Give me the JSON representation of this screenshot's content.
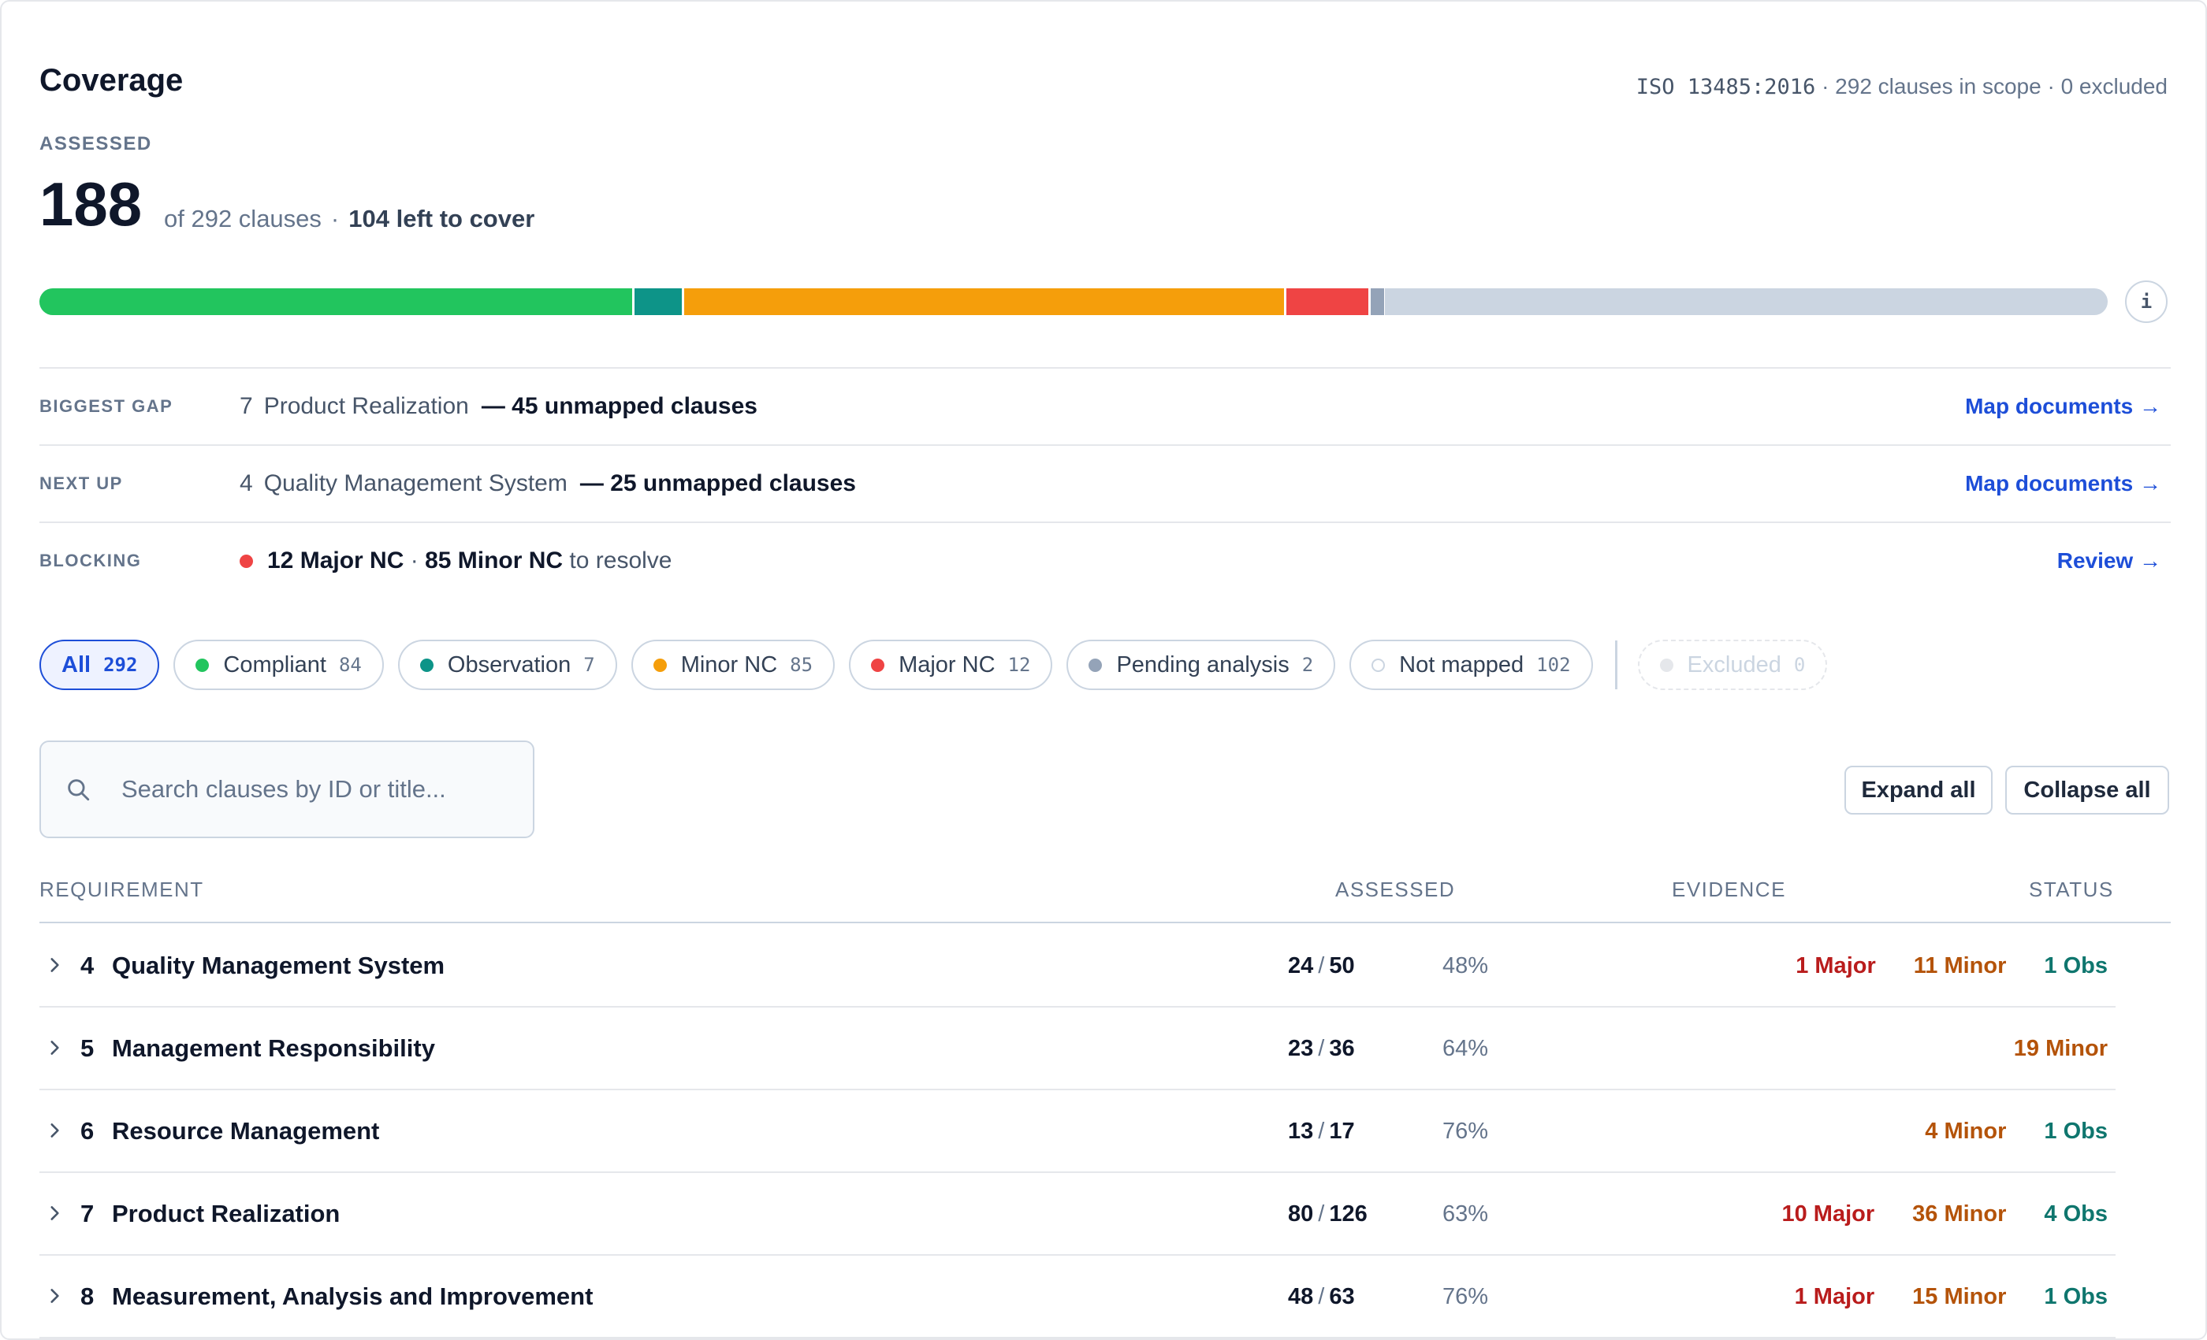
{
  "header": {
    "title": "Coverage",
    "standard": "ISO 13485:2016",
    "scope_text": " · 292 clauses in scope · 0 excluded"
  },
  "summary": {
    "label": "ASSESSED",
    "assessed": "188",
    "of_text": "of 292 clauses",
    "sep": "·",
    "left_text": "104 left to cover"
  },
  "coverage_bar": {
    "total": 292,
    "segments": [
      {
        "name": "Compliant",
        "count": 84,
        "color": "#22c55e"
      },
      {
        "name": "Observation",
        "count": 7,
        "color": "#0d9488"
      },
      {
        "name": "Minor NC",
        "count": 85,
        "color": "#f59e0b"
      },
      {
        "name": "Major NC",
        "count": 12,
        "color": "#ef4444"
      },
      {
        "name": "Pending analysis",
        "count": 2,
        "color": "#94a3b8"
      },
      {
        "name": "Not mapped",
        "count": 102,
        "color": "#cbd5e1"
      }
    ],
    "info_label": "i"
  },
  "insights": [
    {
      "label": "BIGGEST GAP",
      "num": "7",
      "name": "Product Realization",
      "emphasis": "— 45 unmapped clauses",
      "action": "Map documents →"
    },
    {
      "label": "NEXT UP",
      "num": "4",
      "name": "Quality Management System",
      "emphasis": "— 25 unmapped clauses",
      "action": "Map documents →"
    },
    {
      "label": "BLOCKING",
      "major": "12 Major NC",
      "sep": " · ",
      "minor": "85 Minor NC",
      "suffix": " to resolve",
      "action": "Review →"
    }
  ],
  "filters": [
    {
      "label": "All",
      "count": "292"
    },
    {
      "label": "Compliant",
      "count": "84",
      "color": "#22c55e"
    },
    {
      "label": "Observation",
      "count": "7",
      "color": "#0d9488"
    },
    {
      "label": "Minor NC",
      "count": "85",
      "color": "#f59e0b"
    },
    {
      "label": "Major NC",
      "count": "12",
      "color": "#ef4444"
    },
    {
      "label": "Pending analysis",
      "count": "2",
      "color": "#94a3b8"
    },
    {
      "label": "Not mapped",
      "count": "102"
    },
    {
      "label": "Excluded",
      "count": "0",
      "color": "#e5e7eb"
    }
  ],
  "search": {
    "placeholder": "Search clauses by ID or title..."
  },
  "buttons": {
    "expand": "Expand all",
    "collapse": "Collapse all"
  },
  "table": {
    "headers": {
      "requirement": "REQUIREMENT",
      "assessed": "ASSESSED",
      "evidence": "EVIDENCE",
      "status": "STATUS"
    },
    "rows": [
      {
        "id": "4",
        "title": "Quality Management System",
        "done": "24",
        "total": "50",
        "pct": "48%",
        "major": "1 Major",
        "minor": "11 Minor",
        "obs": "1 Obs"
      },
      {
        "id": "5",
        "title": "Management Responsibility",
        "done": "23",
        "total": "36",
        "pct": "64%",
        "major": "",
        "minor": "19 Minor",
        "obs": ""
      },
      {
        "id": "6",
        "title": "Resource Management",
        "done": "13",
        "total": "17",
        "pct": "76%",
        "major": "",
        "minor": "4 Minor",
        "obs": "1 Obs"
      },
      {
        "id": "7",
        "title": "Product Realization",
        "done": "80",
        "total": "126",
        "pct": "63%",
        "major": "10 Major",
        "minor": "36 Minor",
        "obs": "4 Obs"
      },
      {
        "id": "8",
        "title": "Measurement, Analysis and Improvement",
        "done": "48",
        "total": "63",
        "pct": "76%",
        "major": "1 Major",
        "minor": "15 Minor",
        "obs": "1 Obs"
      }
    ]
  }
}
